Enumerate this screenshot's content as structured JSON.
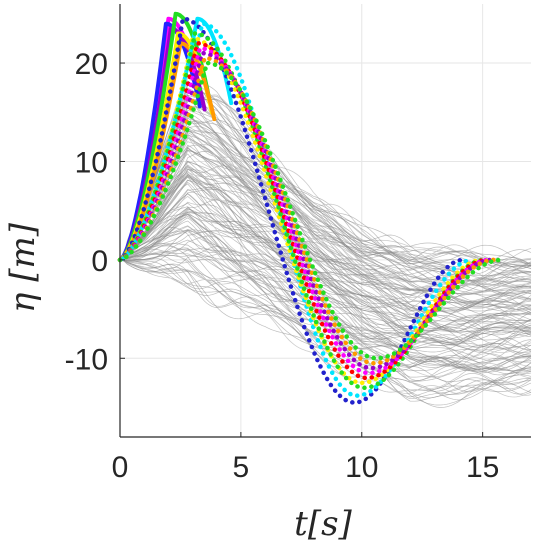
{
  "chart_data": {
    "type": "line",
    "title": "",
    "xlabel": "t[s]",
    "ylabel": "η [m]",
    "xlim": [
      0,
      17
    ],
    "ylim": [
      -18,
      26
    ],
    "xticks": [
      0,
      5,
      10,
      15
    ],
    "yticks": [
      -10,
      0,
      10,
      20
    ],
    "xtick_labels": [
      "0",
      "5",
      "10",
      "15"
    ],
    "ytick_labels": [
      "-10",
      "0",
      "10",
      "20"
    ],
    "grid": true,
    "background_traces": {
      "color": "#8a8a8a",
      "envelope_top": [
        [
          0,
          0
        ],
        [
          1,
          6
        ],
        [
          2,
          13
        ],
        [
          2.8,
          18
        ],
        [
          4,
          16
        ],
        [
          6,
          11
        ],
        [
          8,
          6
        ],
        [
          10,
          3
        ],
        [
          12,
          1
        ],
        [
          14,
          0.5
        ],
        [
          17,
          0.3
        ]
      ],
      "envelope_bottom": [
        [
          0,
          0
        ],
        [
          2,
          -2
        ],
        [
          4,
          -4
        ],
        [
          6,
          -6
        ],
        [
          8,
          -9
        ],
        [
          10,
          -12
        ],
        [
          12,
          -14
        ],
        [
          14,
          -14
        ],
        [
          17,
          -13
        ]
      ]
    },
    "series": [
      {
        "color": "#ff00ff",
        "style": "solid",
        "peak_t": 2.0,
        "peak": 24.5
      },
      {
        "color": "#2222ff",
        "style": "solid",
        "peak_t": 1.9,
        "peak": 24.0
      },
      {
        "color": "#9900cc",
        "style": "solid",
        "peak_t": 2.1,
        "peak": 23.5
      },
      {
        "color": "#22dd22",
        "style": "solid",
        "peak_t": 2.3,
        "peak": 25.0
      },
      {
        "color": "#ffee00",
        "style": "solid",
        "peak_t": 2.4,
        "peak": 23.0
      },
      {
        "color": "#ff9900",
        "style": "solid",
        "peak_t": 2.5,
        "peak": 22.0
      },
      {
        "color": "#00e5ff",
        "style": "solid",
        "peak_t": 3.2,
        "peak": 24.5
      },
      {
        "color": "#2222cc",
        "style": "dotted",
        "peak_t": 2.6,
        "peak": 24.5,
        "trough_t": 9.7,
        "trough": -14.5,
        "end_t": 14.2
      },
      {
        "color": "#00e5ff",
        "style": "dotted",
        "peak_t": 3.4,
        "peak": 24.0,
        "trough_t": 9.8,
        "trough": -13.8,
        "end_t": 14.6
      },
      {
        "color": "#ffee00",
        "style": "dotted",
        "peak_t": 3.0,
        "peak": 22.5,
        "trough_t": 10.0,
        "trough": -12.5,
        "end_t": 15.0
      },
      {
        "color": "#22dd22",
        "style": "dotted",
        "peak_t": 3.1,
        "peak": 23.0,
        "trough_t": 10.1,
        "trough": -13.0,
        "end_t": 15.1
      },
      {
        "color": "#ff0000",
        "style": "dotted",
        "peak_t": 3.2,
        "peak": 22.0,
        "trough_t": 10.2,
        "trough": -12.0,
        "end_t": 15.2
      },
      {
        "color": "#ff00ff",
        "style": "dotted",
        "peak_t": 3.3,
        "peak": 21.5,
        "trough_t": 10.3,
        "trough": -11.5,
        "end_t": 15.3
      },
      {
        "color": "#9900cc",
        "style": "dotted",
        "peak_t": 3.4,
        "peak": 21.0,
        "trough_t": 10.4,
        "trough": -11.0,
        "end_t": 15.4
      },
      {
        "color": "#ff9900",
        "style": "dotted",
        "peak_t": 3.5,
        "peak": 20.5,
        "trough_t": 10.5,
        "trough": -10.5,
        "end_t": 15.5
      },
      {
        "color": "#22dd22",
        "style": "dotted",
        "peak_t": 3.6,
        "peak": 20.0,
        "trough_t": 10.6,
        "trough": -10.0,
        "end_t": 15.8
      }
    ]
  }
}
